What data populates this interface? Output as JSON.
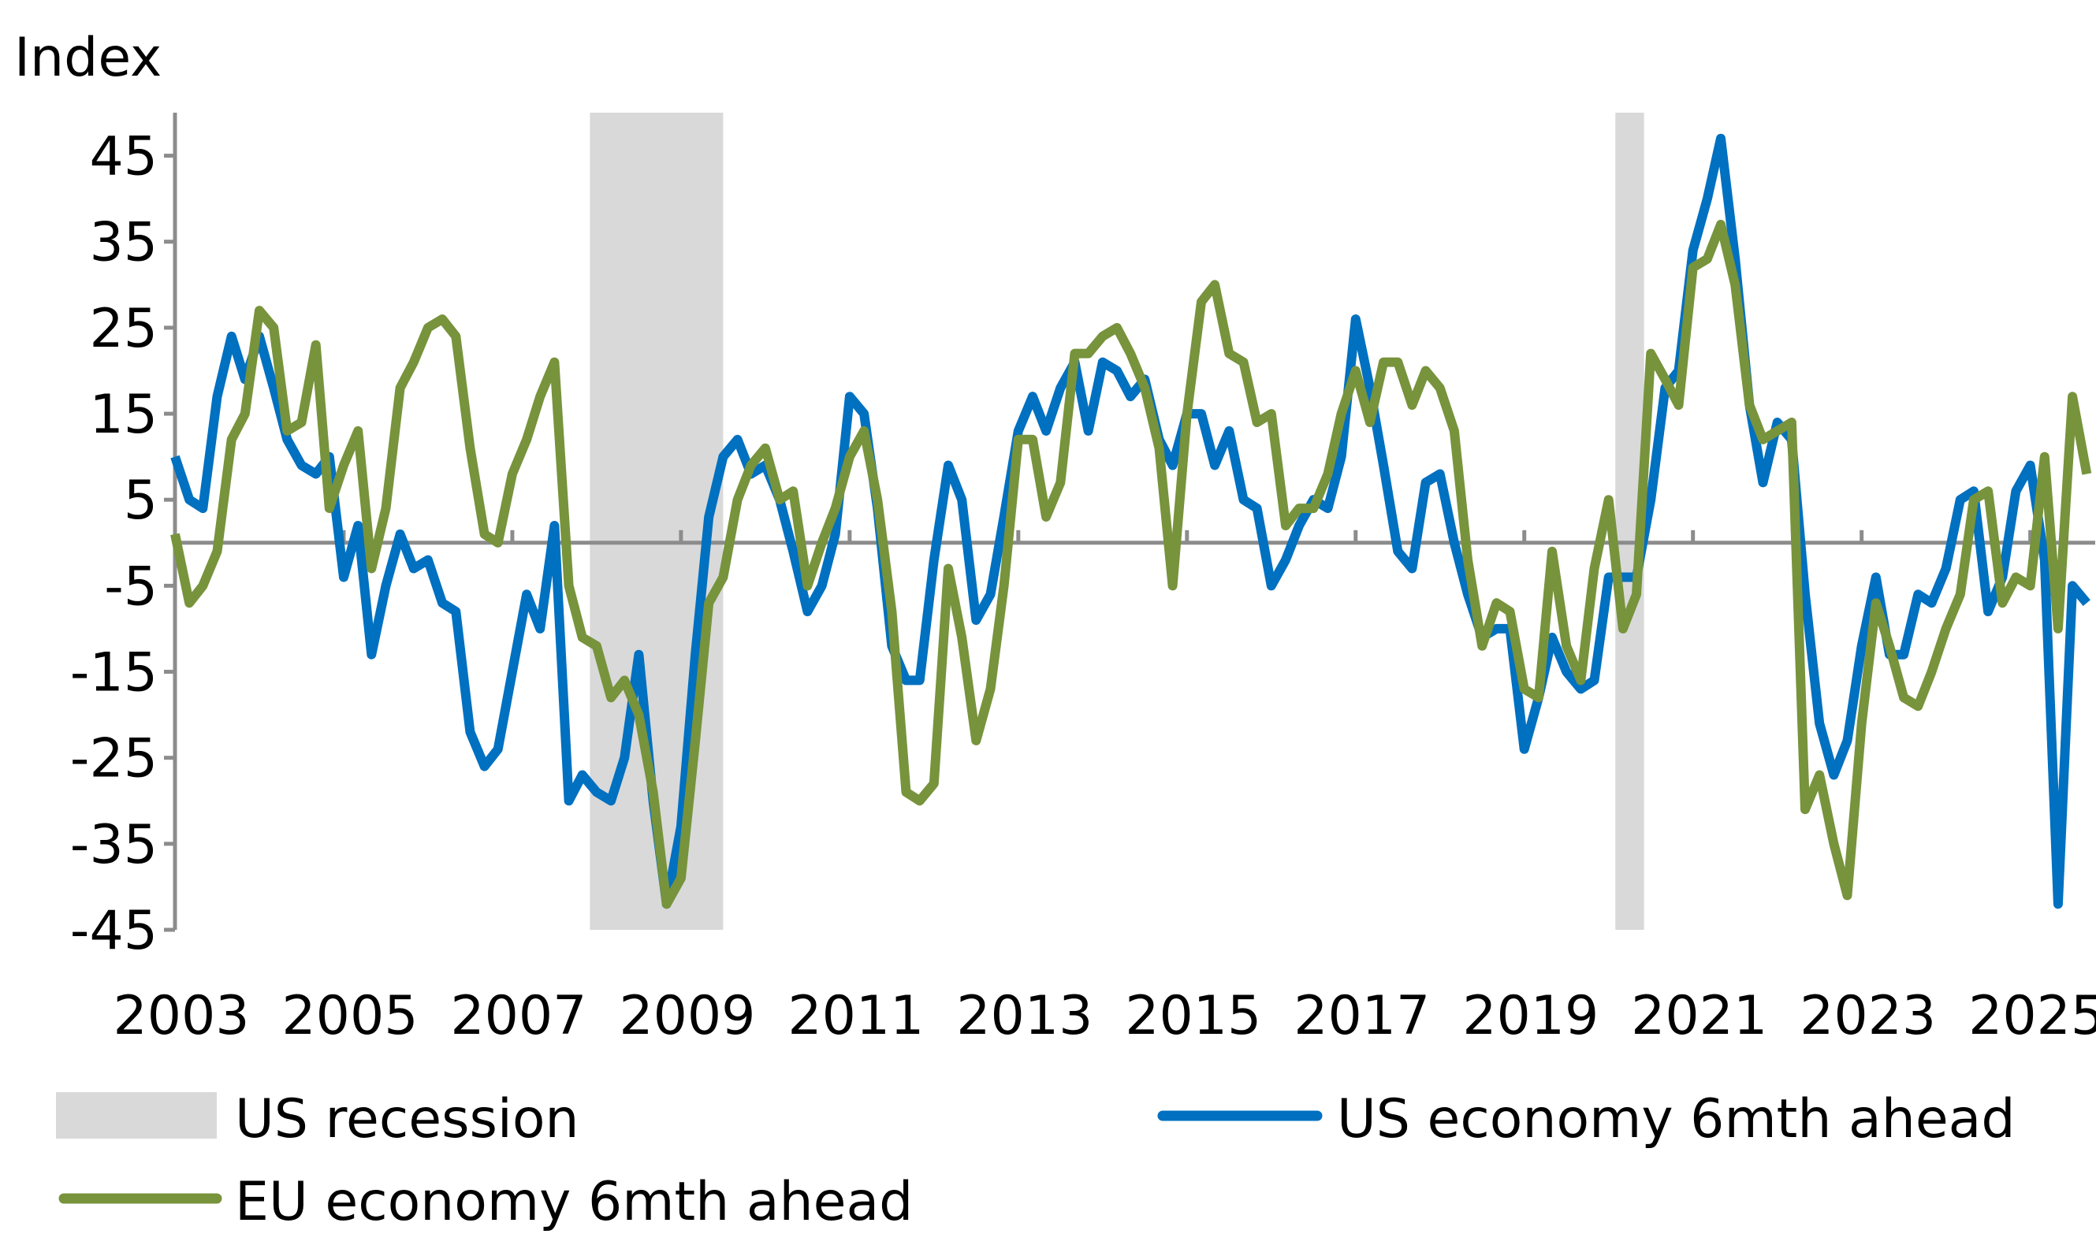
{
  "chart_data": {
    "type": "line",
    "y_label": "Index",
    "x": [
      2003,
      2003.17,
      2003.33,
      2003.5,
      2003.67,
      2003.83,
      2004,
      2004.17,
      2004.33,
      2004.5,
      2004.67,
      2004.83,
      2005,
      2005.17,
      2005.33,
      2005.5,
      2005.67,
      2005.83,
      2006,
      2006.17,
      2006.33,
      2006.5,
      2006.67,
      2006.83,
      2007,
      2007.17,
      2007.33,
      2007.5,
      2007.67,
      2007.83,
      2008,
      2008.17,
      2008.33,
      2008.5,
      2008.67,
      2008.83,
      2009,
      2009.17,
      2009.33,
      2009.5,
      2009.67,
      2009.83,
      2010,
      2010.17,
      2010.33,
      2010.5,
      2010.67,
      2010.83,
      2011,
      2011.17,
      2011.33,
      2011.5,
      2011.67,
      2011.83,
      2012,
      2012.17,
      2012.33,
      2012.5,
      2012.67,
      2012.83,
      2013,
      2013.17,
      2013.33,
      2013.5,
      2013.67,
      2013.83,
      2014,
      2014.17,
      2014.33,
      2014.5,
      2014.67,
      2014.83,
      2015,
      2015.17,
      2015.33,
      2015.5,
      2015.67,
      2015.83,
      2016,
      2016.17,
      2016.33,
      2016.5,
      2016.67,
      2016.83,
      2017,
      2017.17,
      2017.33,
      2017.5,
      2017.67,
      2017.83,
      2018,
      2018.17,
      2018.33,
      2018.5,
      2018.67,
      2018.83,
      2019,
      2019.17,
      2019.33,
      2019.5,
      2019.67,
      2019.83,
      2020,
      2020.17,
      2020.33,
      2020.5,
      2020.67,
      2020.83,
      2021,
      2021.17,
      2021.33,
      2021.5,
      2021.67,
      2021.83,
      2022,
      2022.17,
      2022.33,
      2022.5,
      2022.67,
      2022.83,
      2023,
      2023.17,
      2023.33,
      2023.5,
      2023.67,
      2023.83,
      2024,
      2024.17,
      2024.33,
      2024.5,
      2024.67,
      2024.83,
      2025,
      2025.17,
      2025.33,
      2025.5,
      2025.67
    ],
    "series": [
      {
        "name": "US economy 6mth ahead",
        "color": "#0070c0",
        "values": [
          10,
          5,
          4,
          17,
          24,
          19,
          24,
          18,
          12,
          9,
          8,
          10,
          -4,
          2,
          -13,
          -5,
          1,
          -3,
          -2,
          -7,
          -8,
          -22,
          -26,
          -24,
          -15,
          -6,
          -10,
          2,
          -30,
          -27,
          -29,
          -30,
          -25,
          -13,
          -30,
          -42,
          -33,
          -13,
          3,
          10,
          12,
          8,
          9,
          5,
          -1,
          -8,
          -5,
          1,
          17,
          15,
          4,
          -12,
          -16,
          -16,
          -2,
          9,
          5,
          -9,
          -6,
          3,
          13,
          17,
          13,
          18,
          21,
          13,
          21,
          20,
          17,
          19,
          12,
          9,
          15,
          15,
          9,
          13,
          5,
          4,
          -5,
          -2,
          2,
          5,
          4,
          10,
          26,
          18,
          9,
          -1,
          -3,
          7,
          8,
          0,
          -6,
          -11,
          -10,
          -10,
          -24,
          -18,
          -11,
          -15,
          -17,
          -16,
          -4,
          -4,
          -4,
          5,
          18,
          20,
          34,
          40,
          47,
          33,
          16,
          7,
          14,
          12,
          -6,
          -21,
          -27,
          -23,
          -12,
          -4,
          -13,
          -13,
          -6,
          -7,
          -3,
          5,
          6,
          -8,
          -4,
          6,
          9,
          -2,
          -42,
          -5,
          -7
        ]
      },
      {
        "name": "EU economy 6mth ahead",
        "color": "#77933c",
        "values": [
          1,
          -7,
          -5,
          -1,
          12,
          15,
          27,
          25,
          13,
          14,
          23,
          4,
          9,
          13,
          -3,
          4,
          18,
          21,
          25,
          26,
          24,
          11,
          1,
          0,
          8,
          12,
          17,
          21,
          -5,
          -11,
          -12,
          -18,
          -16,
          -20,
          -29,
          -42,
          -39,
          -23,
          -7,
          -4,
          5,
          9,
          11,
          5,
          6,
          -5,
          0,
          4,
          10,
          13,
          5,
          -8,
          -29,
          -30,
          -28,
          -3,
          -11,
          -23,
          -17,
          -5,
          12,
          12,
          3,
          7,
          22,
          22,
          24,
          25,
          22,
          18,
          11,
          -5,
          15,
          28,
          30,
          22,
          21,
          14,
          15,
          2,
          4,
          4,
          8,
          15,
          20,
          14,
          21,
          21,
          16,
          20,
          18,
          13,
          -2,
          -12,
          -7,
          -8,
          -17,
          -18,
          -1,
          -12,
          -16,
          -3,
          5,
          -10,
          -6,
          22,
          19,
          16,
          32,
          33,
          37,
          30,
          16,
          12,
          13,
          14,
          -31,
          -27,
          -35,
          -41,
          -21,
          -7,
          -12,
          -18,
          -19,
          -15,
          -10,
          -6,
          5,
          6,
          -7,
          -4,
          -5,
          10,
          -10,
          17,
          8
        ]
      }
    ],
    "xlim": [
      2003,
      2025.77
    ],
    "xticks": [
      2003,
      2005,
      2007,
      2009,
      2011,
      2013,
      2015,
      2017,
      2019,
      2021,
      2023,
      2025
    ],
    "ylim": [
      -45,
      50
    ],
    "yticks": [
      -45,
      -35,
      -25,
      -15,
      -5,
      5,
      15,
      25,
      35,
      45
    ],
    "shaded_regions": [
      [
        2007.92,
        2009.5
      ],
      [
        2020.08,
        2020.42
      ]
    ],
    "shade_label": "US recession",
    "shade_color": "#d9d9d9"
  }
}
